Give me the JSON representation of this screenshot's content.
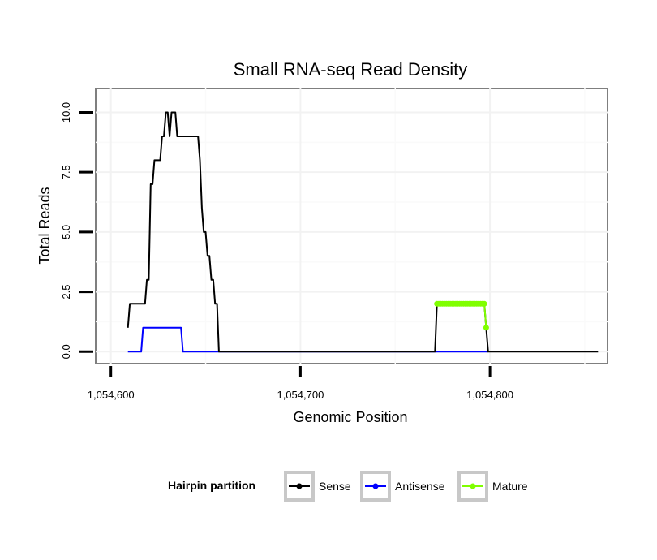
{
  "chart_data": {
    "type": "line",
    "title": "Small RNA-seq Read Density",
    "xlabel": "Genomic Position",
    "ylabel": "Total Reads",
    "xlim": [
      1054592,
      1054862
    ],
    "ylim": [
      -0.5,
      11.0
    ],
    "x_ticks": [
      1054600,
      1054700,
      1054800
    ],
    "x_tick_labels": [
      "1,054,600",
      "1,054,700",
      "1,054,800"
    ],
    "y_ticks": [
      0,
      2.5,
      5,
      7.5,
      10
    ],
    "y_tick_labels": [
      "0.0",
      "2.5",
      "5.0",
      "7.5",
      "10.0"
    ],
    "grid": true,
    "legend": {
      "title": "Hairpin partition",
      "position": "bottom",
      "entries": [
        "Sense",
        "Antisense",
        "Mature"
      ]
    },
    "series": [
      {
        "name": "Sense",
        "color": "#000000",
        "style": "line",
        "x": [
          1054609,
          1054610,
          1054618,
          1054619,
          1054620,
          1054621,
          1054622,
          1054623,
          1054624,
          1054625,
          1054626,
          1054627,
          1054628,
          1054629,
          1054630,
          1054631,
          1054632,
          1054633,
          1054634,
          1054635,
          1054646,
          1054647,
          1054648,
          1054649,
          1054650,
          1054651,
          1054652,
          1054653,
          1054654,
          1054655,
          1054656,
          1054657,
          1054658,
          1054771,
          1054772,
          1054797,
          1054798,
          1054799,
          1054857
        ],
        "y": [
          1,
          2,
          2,
          3,
          3,
          7,
          7,
          8,
          8,
          8,
          8,
          9,
          9,
          10,
          10,
          9,
          10,
          10,
          10,
          9,
          9,
          8,
          6,
          5,
          5,
          4,
          4,
          3,
          3,
          2,
          2,
          0,
          0,
          0,
          2,
          2,
          1,
          0,
          0
        ]
      },
      {
        "name": "Antisense",
        "color": "#0000ff",
        "style": "line",
        "x": [
          1054609,
          1054616,
          1054617,
          1054637,
          1054638,
          1054799
        ],
        "y": [
          0,
          0,
          1,
          1,
          0,
          0
        ]
      },
      {
        "name": "Mature",
        "color": "#80ff00",
        "style": "line+points",
        "x": [
          1054772,
          1054773,
          1054774,
          1054775,
          1054776,
          1054777,
          1054778,
          1054779,
          1054780,
          1054781,
          1054782,
          1054783,
          1054784,
          1054785,
          1054786,
          1054787,
          1054788,
          1054789,
          1054790,
          1054791,
          1054792,
          1054793,
          1054794,
          1054795,
          1054796,
          1054797,
          1054798
        ],
        "y": [
          2,
          2,
          2,
          2,
          2,
          2,
          2,
          2,
          2,
          2,
          2,
          2,
          2,
          2,
          2,
          2,
          2,
          2,
          2,
          2,
          2,
          2,
          2,
          2,
          2,
          2,
          1
        ]
      }
    ]
  }
}
